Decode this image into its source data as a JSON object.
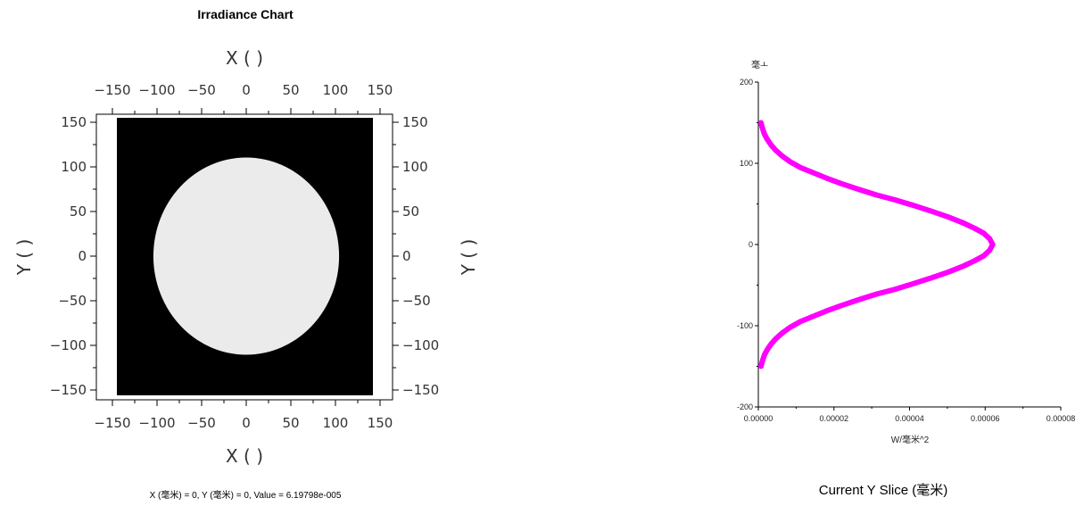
{
  "left_chart": {
    "title": "Irradiance Chart",
    "x_label": "X (   )",
    "y_label": "Y (   )",
    "status_text": "X (毫米) = 0, Y (毫米) = 0, Value = 6.19798e-005"
  },
  "right_chart": {
    "y_unit": "毫ㅗ",
    "x_label": "W/毫米^2",
    "slice_title": "Current Y Slice (毫米)"
  },
  "chart_data": [
    {
      "type": "heatmap",
      "title": "Irradiance Chart",
      "xlabel": "X (   )",
      "ylabel": "Y (   )",
      "xlim": [
        -150,
        150
      ],
      "ylim": [
        -150,
        150
      ],
      "x_ticks": [
        -150,
        -100,
        -50,
        0,
        50,
        100,
        150
      ],
      "y_ticks": [
        -150,
        -100,
        -50,
        0,
        50,
        100,
        150
      ],
      "tick_labels": [
        "−150",
        "−100",
        "−50",
        "0",
        "50",
        "100",
        "150"
      ],
      "peak_value": 6.19798e-05,
      "peak_at": [
        0,
        0
      ],
      "gaussian_sigma": 50,
      "contour_levels": 10,
      "colormap": "grayscale"
    },
    {
      "type": "line",
      "title": "Current Y Slice (毫米)",
      "xlabel": "W/毫米^2",
      "ylabel": "毫ㅗ",
      "xlim": [
        0,
        8e-05
      ],
      "ylim": [
        -200,
        200
      ],
      "x_ticks": [
        "0.00000",
        "0.00002",
        "0.00004",
        "0.00006",
        "0.00008"
      ],
      "y_ticks": [
        "200",
        "100",
        "0",
        "-100",
        "-200"
      ],
      "series": [
        {
          "color": "#ff00ff",
          "x": [
            7e-07,
            1.1e-06,
            1.6e-06,
            2.3e-06,
            3.3e-06,
            4.6e-06,
            6.3e-06,
            8.4e-06,
            1.11e-05,
            1.42e-05,
            1.79e-05,
            2.2e-05,
            2.65e-05,
            3.13e-05,
            3.62e-05,
            4.11e-05,
            4.58e-05,
            5.02e-05,
            5.4e-05,
            5.72e-05,
            5.96e-05,
            6.12e-05,
            6.2e-05,
            6.12e-05,
            5.96e-05,
            5.72e-05,
            5.4e-05,
            5.02e-05,
            4.58e-05,
            4.11e-05,
            3.62e-05,
            3.13e-05,
            2.65e-05,
            2.2e-05,
            1.79e-05,
            1.42e-05,
            1.11e-05,
            8.4e-06,
            6.3e-06,
            4.6e-06,
            3.3e-06,
            2.3e-06,
            1.6e-06,
            1.1e-06,
            7e-07
          ],
          "y": [
            150,
            143,
            136,
            130,
            123,
            116,
            109,
            102,
            95,
            89,
            82,
            75,
            68,
            61,
            55,
            48,
            41,
            34,
            27,
            20,
            14,
            7,
            0,
            -7,
            -14,
            -20,
            -27,
            -34,
            -41,
            -48,
            -55,
            -61,
            -68,
            -75,
            -82,
            -89,
            -95,
            -102,
            -109,
            -116,
            -123,
            -130,
            -136,
            -143,
            -150
          ]
        }
      ]
    }
  ]
}
